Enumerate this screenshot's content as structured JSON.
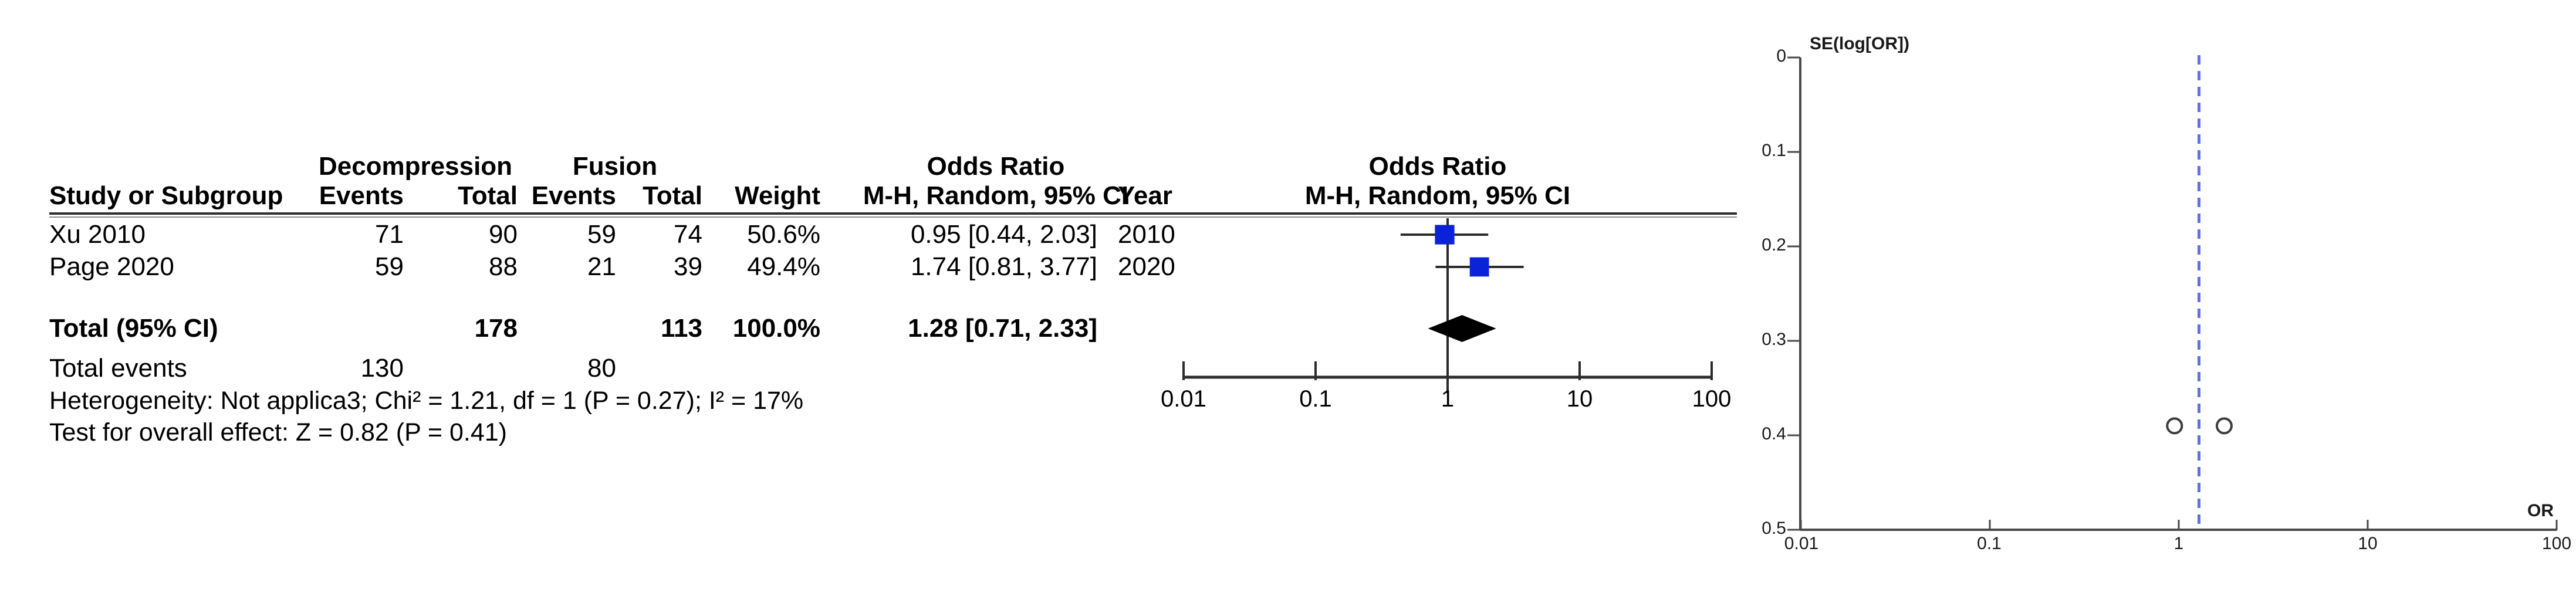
{
  "figure": {
    "background": "#ffffff"
  },
  "colors": {
    "effect_marker": "#0b23d8",
    "diamond": "#000000",
    "line": "#2b2b2b",
    "funnel_axis": "#4a4a4a",
    "reference_line": "#5e72e6",
    "funnel_marker_outline": "#3d3d3d"
  },
  "chart_data": [
    {
      "type": "table",
      "name": "forest-plot",
      "x_scale": "log",
      "group_headers": {
        "treatment1": "Decompression",
        "treatment2": "Fusion",
        "or_text_col": "Odds Ratio",
        "or_graphic_col": "Odds Ratio"
      },
      "sub_headers": {
        "study": "Study or Subgroup",
        "events1": "Events",
        "total1": "Total",
        "events2": "Events",
        "total2": "Total",
        "weight": "Weight",
        "mh_ci": "M-H, Random, 95% CI",
        "year": "Year",
        "mh_ci_graphic": "M-H, Random, 95% CI"
      },
      "rows": [
        {
          "study": "Xu 2010",
          "events1": "71",
          "total1": "90",
          "events2": "59",
          "total2": "74",
          "weight": "50.6%",
          "estimate": "0.95 [0.44, 2.03]",
          "year": "2010",
          "or": 0.95,
          "low": 0.44,
          "high": 2.03
        },
        {
          "study": "Page 2020",
          "events1": "59",
          "total1": "88",
          "events2": "21",
          "total2": "39",
          "weight": "49.4%",
          "estimate": "1.74 [0.81, 3.77]",
          "year": "2020",
          "or": 1.74,
          "low": 0.81,
          "high": 3.77
        }
      ],
      "total_row": {
        "label": "Total (95% CI)",
        "total1": "178",
        "total2": "113",
        "weight": "100.0%",
        "estimate": "1.28 [0.71, 2.33]",
        "or": 1.28,
        "low": 0.71,
        "high": 2.33
      },
      "total_events_row": {
        "label": "Total events",
        "events1": "130",
        "events2": "80"
      },
      "footnotes": {
        "heterogeneity": "Heterogeneity: Not applica3; Chi² = 1.21, df = 1 (P = 0.27); I² = 17%",
        "overall_effect": "Test for overall effect: Z = 0.82 (P = 0.41)"
      },
      "x_ticks": [
        "0.01",
        "0.1",
        "1",
        "10",
        "100"
      ]
    },
    {
      "type": "scatter",
      "name": "funnel-plot",
      "ylabel": "SE(log[OR])",
      "xlabel": "OR",
      "x_scale": "log",
      "xlim": [
        0.01,
        100
      ],
      "ylim": [
        0,
        0.5
      ],
      "x_ticks": [
        "0.01",
        "0.1",
        "1",
        "10",
        "100"
      ],
      "y_ticks": [
        "0",
        "0.1",
        "0.2",
        "0.3",
        "0.4",
        "0.5"
      ],
      "points": [
        {
          "or": 0.95,
          "se": 0.39
        },
        {
          "or": 1.74,
          "se": 0.39
        }
      ],
      "reference_or": 1.28,
      "legend": "none",
      "grid": "off"
    }
  ]
}
